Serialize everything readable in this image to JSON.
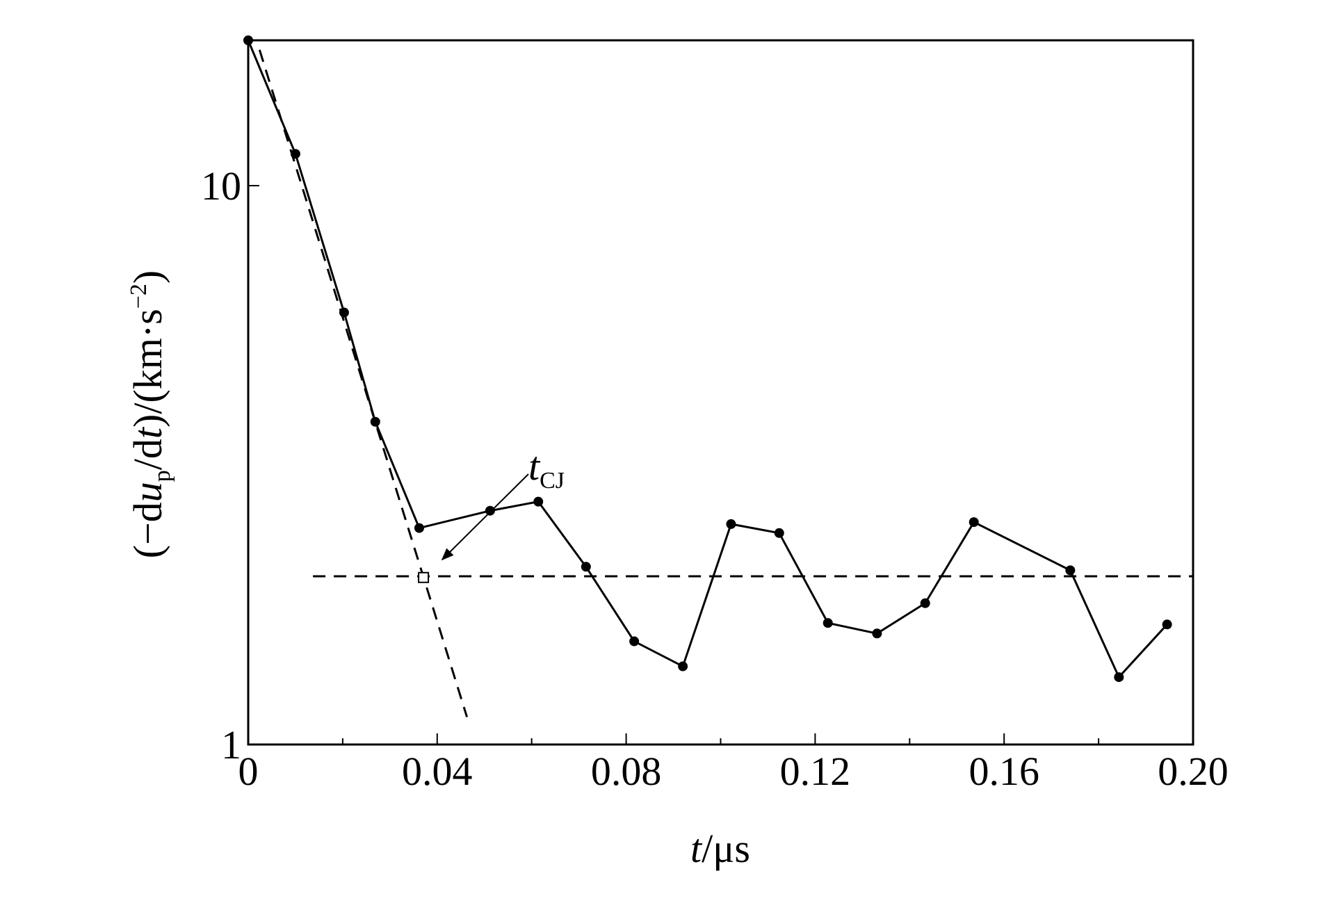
{
  "chart_data": {
    "type": "line",
    "x": [
      0,
      0.01,
      0.0203,
      0.0269,
      0.0362,
      0.0512,
      0.0614,
      0.0715,
      0.0817,
      0.092,
      0.1022,
      0.1124,
      0.1227,
      0.1331,
      0.1433,
      0.1536,
      0.174,
      0.1843,
      0.1945
    ],
    "values": [
      18.2,
      11.4,
      5.93,
      3.78,
      2.44,
      2.62,
      2.72,
      2.08,
      1.53,
      1.38,
      2.48,
      2.39,
      1.65,
      1.58,
      1.79,
      2.5,
      2.05,
      1.32,
      1.64
    ],
    "color": "#000000",
    "fit_line": {
      "x": [
        0.0024,
        0.0463
      ],
      "values": [
        17.5,
        1.12
      ]
    },
    "cj_level": {
      "x": [
        0.0137,
        0.2
      ],
      "values": [
        2.0,
        2.0
      ]
    },
    "cj_point": {
      "x": 0.0371,
      "value": 1.99
    },
    "annotation": [
      "t",
      "CJ"
    ],
    "xlabel": [
      "t",
      "/μs"
    ],
    "ylabel": [
      "(−d",
      "u",
      "p",
      "/d",
      "t",
      ")/(km·s",
      "−2",
      ")"
    ],
    "xlim": [
      0,
      0.2
    ],
    "xticks": [
      {
        "value": 0,
        "label": "0"
      },
      0.04,
      0.08,
      0.12,
      0.16,
      {
        "value": 0.2,
        "label": "0.20"
      }
    ],
    "xminor_ticks": [
      0.02,
      0.06,
      0.1,
      0.14,
      0.18
    ],
    "ylim": [
      1,
      18.2
    ],
    "yticks": [
      1,
      10
    ],
    "ylog": true,
    "grid": false
  }
}
